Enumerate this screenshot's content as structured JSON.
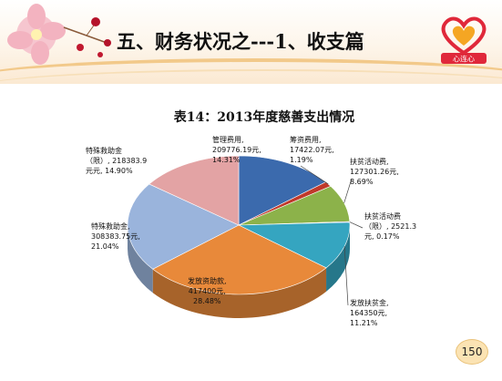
{
  "slide": {
    "title": "五、财务状况之---1、收支篇",
    "logo_text": "心连心",
    "page_number": "150"
  },
  "colors": {
    "title_band": "#fbe9d2",
    "accent_gold": "#f2c98a",
    "logo_red": "#e0283a"
  },
  "chart_data": {
    "type": "pie",
    "title": "表14：2013年度慈善支出情况",
    "units": "元",
    "slices": [
      {
        "name": "管理费用",
        "value": 209776.19,
        "percent": 14.31,
        "label": "管理费用,\n209776.19元,\n14.31%",
        "color": "#3b6aad"
      },
      {
        "name": "筹资费用",
        "value": 17422.07,
        "percent": 1.19,
        "label": "筹资费用,\n17422.07元,\n1.19%",
        "color": "#c0392b"
      },
      {
        "name": "扶贫活动费",
        "value": 127301.26,
        "percent": 8.69,
        "label": "扶贫活动费,\n127301.26元,\n8.69%",
        "color": "#8cb24a"
      },
      {
        "name": "扶贫活动费（限）",
        "value": 2521.3,
        "percent": 0.17,
        "label": "扶贫活动费\n（限）, 2521.3\n元, 0.17%",
        "color": "#7a5fa8"
      },
      {
        "name": "发放扶贫金",
        "value": 164350,
        "percent": 11.21,
        "label": "发放扶贫金,\n164350元,\n11.21%",
        "color": "#35a5c0"
      },
      {
        "name": "发放资助款",
        "value": 417400,
        "percent": 28.48,
        "label": "发放资助款,\n417400元,\n28.48%",
        "color": "#e8893a"
      },
      {
        "name": "特殊救助金",
        "value": 308383.75,
        "percent": 21.04,
        "label": "特殊救助金,\n308383.75元,\n21.04%",
        "color": "#9ab4dc"
      },
      {
        "name": "特殊救助金（限）",
        "value": 218383.9,
        "percent": 14.9,
        "label": "特殊救助金\n（限）, 218383.9\n元元, 14.90%",
        "color": "#e3a3a4"
      }
    ]
  }
}
